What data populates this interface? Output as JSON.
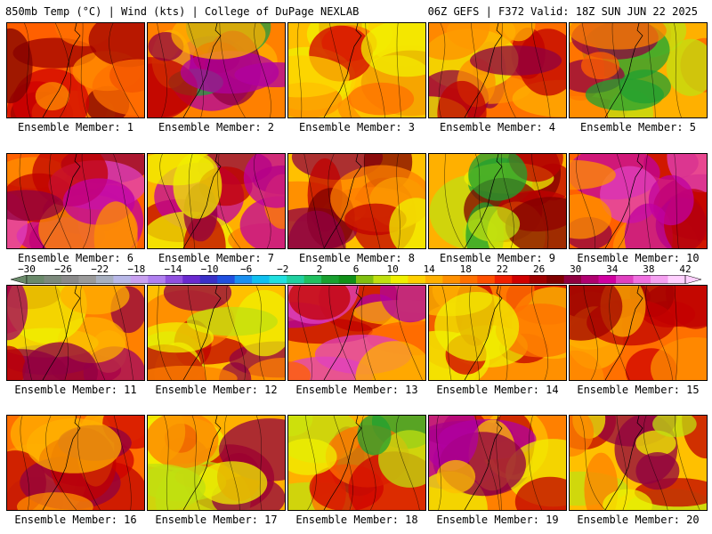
{
  "header": {
    "left_title": "850mb Temp (°C) | Wind (kts) | College of DuPage NEXLAB",
    "right_title": "06Z GEFS | F372 Valid: 18Z SUN JUN 22 2025"
  },
  "colorbar": {
    "tick_labels": [
      "−30",
      "−26",
      "−22",
      "−18",
      "−14",
      "−10",
      "−6",
      "−2",
      "2",
      "6",
      "10",
      "14",
      "18",
      "22",
      "26",
      "30",
      "34",
      "38",
      "42"
    ],
    "bin_colors": [
      "#6a8a6a",
      "#7c8a7c",
      "#8a8a8a",
      "#9a9a9a",
      "#a8b0c0",
      "#b8b8e8",
      "#c8a0f0",
      "#b080f0",
      "#9050e0",
      "#6a2ad0",
      "#3a30c8",
      "#2050e0",
      "#1a90f0",
      "#10c0f0",
      "#20e0e0",
      "#20d0a0",
      "#20c060",
      "#18a030",
      "#109018",
      "#80c010",
      "#c0e010",
      "#f0f000",
      "#ffd000",
      "#ffb000",
      "#ff9000",
      "#ff7000",
      "#ff5000",
      "#f02000",
      "#d00000",
      "#a00000",
      "#800000",
      "#900040",
      "#b00070",
      "#d000a0",
      "#e040c0",
      "#f070e0",
      "#f4a0f0",
      "#ffd0ff"
    ]
  },
  "panels": [
    {
      "label": "Ensemble Member: 1",
      "palette": [
        "#ff6000",
        "#d00000",
        "#a00000",
        "#ff8c00",
        "#ff7000",
        "#800000"
      ]
    },
    {
      "label": "Ensemble Member: 2",
      "palette": [
        "#ff8000",
        "#c00000",
        "#900040",
        "#b000a0",
        "#ffb000",
        "#20a040"
      ]
    },
    {
      "label": "Ensemble Member: 3",
      "palette": [
        "#ffc000",
        "#ff9000",
        "#d00000",
        "#f0f000",
        "#ffd000",
        "#ff7000"
      ]
    },
    {
      "label": "Ensemble Member: 4",
      "palette": [
        "#ff7000",
        "#c00000",
        "#900040",
        "#ff9000",
        "#ffb000",
        "#f0f000"
      ]
    },
    {
      "label": "Ensemble Member: 5",
      "palette": [
        "#ffb000",
        "#ff8000",
        "#c0e010",
        "#20a030",
        "#ff6000",
        "#900040"
      ]
    },
    {
      "label": "Ensemble Member: 6",
      "palette": [
        "#ff6000",
        "#c00000",
        "#900040",
        "#c000a0",
        "#ff9000",
        "#e040c0"
      ]
    },
    {
      "label": "Ensemble Member: 7",
      "palette": [
        "#ffb000",
        "#c00000",
        "#900040",
        "#c000a0",
        "#f0f000",
        "#ff8000"
      ]
    },
    {
      "label": "Ensemble Member: 8",
      "palette": [
        "#ffc000",
        "#ff8000",
        "#c00000",
        "#900040",
        "#f0f000",
        "#800000"
      ]
    },
    {
      "label": "Ensemble Member: 9",
      "palette": [
        "#ffb000",
        "#c00000",
        "#800000",
        "#c0e010",
        "#20a030",
        "#f0f000"
      ]
    },
    {
      "label": "Ensemble Member: 10",
      "palette": [
        "#ff6000",
        "#c00000",
        "#900040",
        "#c000a0",
        "#ff9000",
        "#e040c0"
      ]
    },
    {
      "label": "Ensemble Member: 11",
      "palette": [
        "#ff8000",
        "#c00000",
        "#900040",
        "#a00060",
        "#ffb000",
        "#f0f000"
      ]
    },
    {
      "label": "Ensemble Member: 12",
      "palette": [
        "#ffc000",
        "#c00000",
        "#900040",
        "#ff8000",
        "#f0f000",
        "#c0e010"
      ]
    },
    {
      "label": "Ensemble Member: 13",
      "palette": [
        "#ff9000",
        "#c00000",
        "#b000a0",
        "#e040c0",
        "#ffb000",
        "#ff6000"
      ]
    },
    {
      "label": "Ensemble Member: 14",
      "palette": [
        "#ff9000",
        "#c00000",
        "#ffc000",
        "#ff7000",
        "#f0f000",
        "#d00000"
      ]
    },
    {
      "label": "Ensemble Member: 15",
      "palette": [
        "#ff7000",
        "#c00000",
        "#ffb000",
        "#a00000",
        "#ff9000",
        "#d00000"
      ]
    },
    {
      "label": "Ensemble Member: 16",
      "palette": [
        "#ff7000",
        "#c00000",
        "#900040",
        "#ff9000",
        "#ffb000",
        "#d00000"
      ]
    },
    {
      "label": "Ensemble Member: 17",
      "palette": [
        "#ffb000",
        "#c00000",
        "#900040",
        "#f0f000",
        "#c0e010",
        "#ff8000"
      ]
    },
    {
      "label": "Ensemble Member: 18",
      "palette": [
        "#ffb000",
        "#d00000",
        "#f0f000",
        "#c0e010",
        "#20a030",
        "#ff7000"
      ]
    },
    {
      "label": "Ensemble Member: 19",
      "palette": [
        "#ff8000",
        "#c00000",
        "#900040",
        "#b000a0",
        "#ffc000",
        "#f0f000"
      ]
    },
    {
      "label": "Ensemble Member: 20",
      "palette": [
        "#ffc000",
        "#c00000",
        "#900040",
        "#f0f000",
        "#c0e010",
        "#ff8000"
      ]
    }
  ]
}
